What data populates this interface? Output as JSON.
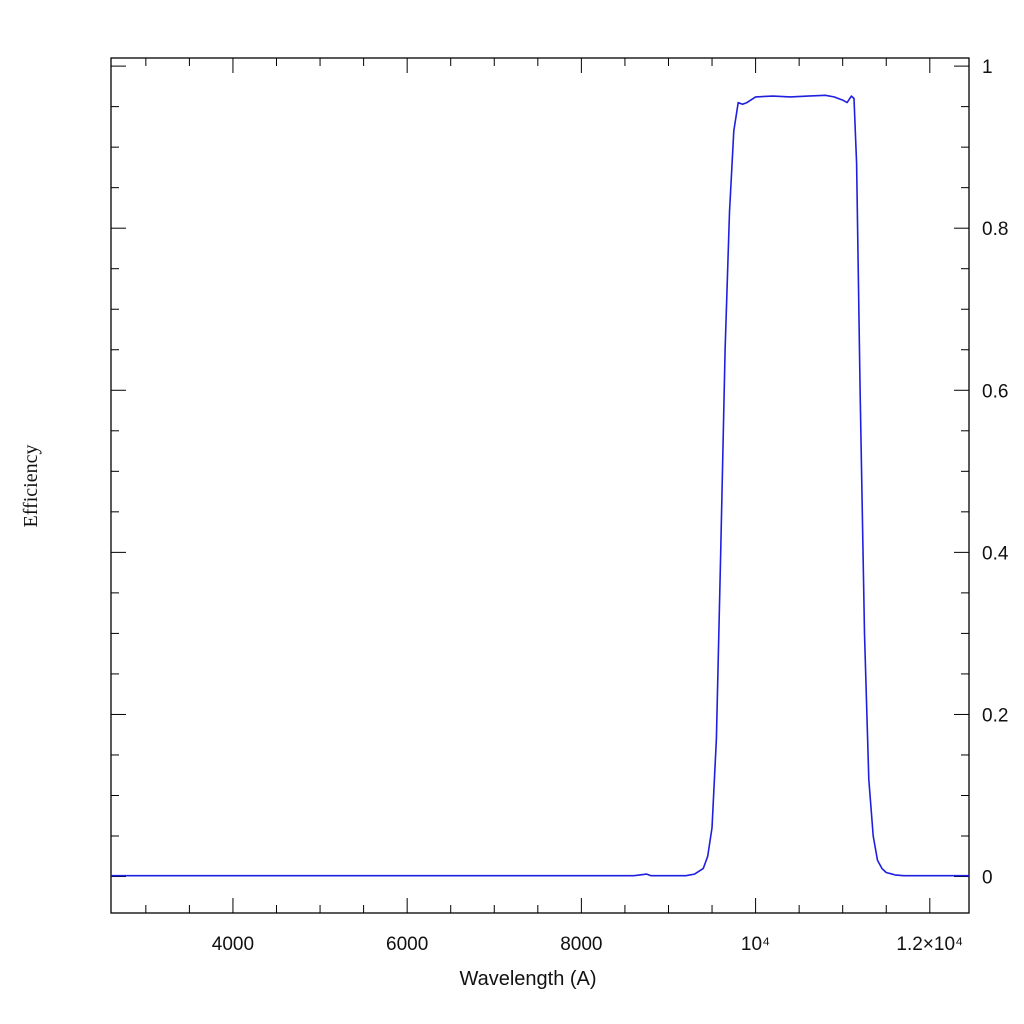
{
  "chart_data": {
    "type": "line",
    "xlabel": "Wavelength (A)",
    "ylabel": "Efficiency",
    "xlim": [
      2600,
      12450
    ],
    "ylim": [
      -0.045,
      1.01
    ],
    "x_ticks": [
      {
        "value": 4000,
        "label": "4000"
      },
      {
        "value": 6000,
        "label": "6000"
      },
      {
        "value": 8000,
        "label": "8000"
      },
      {
        "value": 10000,
        "label": "10⁴"
      },
      {
        "value": 12000,
        "label": "1.2×10⁴"
      }
    ],
    "y_ticks": [
      {
        "value": 0,
        "label": "0"
      },
      {
        "value": 0.2,
        "label": "0.2"
      },
      {
        "value": 0.4,
        "label": "0.4"
      },
      {
        "value": 0.6,
        "label": "0.6"
      },
      {
        "value": 0.8,
        "label": "0.8"
      },
      {
        "value": 1,
        "label": "1"
      }
    ],
    "x_minor_step": 500,
    "y_minor_step": 0.05,
    "grid": false,
    "series": [
      {
        "color": "#1f1fdf",
        "x": [
          2600,
          3000,
          4000,
          5000,
          6000,
          7000,
          8000,
          8600,
          8750,
          8800,
          9000,
          9200,
          9300,
          9400,
          9450,
          9500,
          9550,
          9600,
          9650,
          9700,
          9750,
          9800,
          9850,
          9900,
          10000,
          10200,
          10400,
          10600,
          10800,
          10900,
          11000,
          11050,
          11100,
          11130,
          11160,
          11200,
          11250,
          11300,
          11350,
          11400,
          11450,
          11500,
          11600,
          11700,
          11800,
          12000,
          12450
        ],
        "y": [
          0.001,
          0.001,
          0.001,
          0.001,
          0.001,
          0.001,
          0.001,
          0.001,
          0.003,
          0.001,
          0.001,
          0.001,
          0.003,
          0.01,
          0.025,
          0.06,
          0.17,
          0.4,
          0.65,
          0.82,
          0.92,
          0.955,
          0.953,
          0.955,
          0.962,
          0.963,
          0.962,
          0.963,
          0.964,
          0.962,
          0.958,
          0.955,
          0.963,
          0.96,
          0.88,
          0.6,
          0.3,
          0.12,
          0.05,
          0.02,
          0.01,
          0.005,
          0.002,
          0.001,
          0.001,
          0.001,
          0.001
        ]
      }
    ]
  }
}
